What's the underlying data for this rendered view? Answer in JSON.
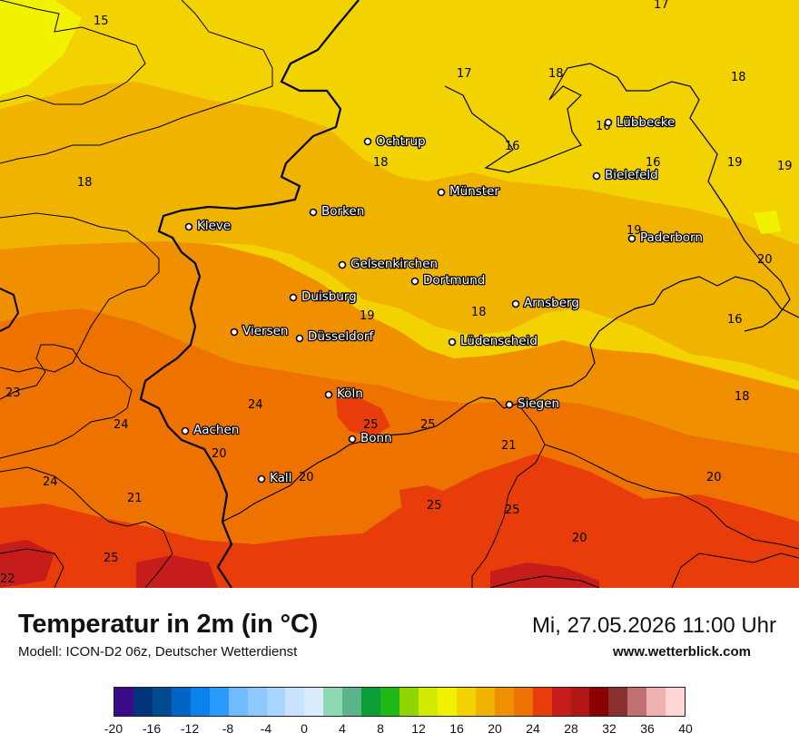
{
  "title": "Temperatur in 2m (in °C)",
  "model": "Modell: ICON-D2 06z, Deutscher Wetterdienst",
  "datetime": "Mi, 27.05.2026 11:00 Uhr",
  "website": "www.wetterblick.com",
  "legend": {
    "ticks": [
      "-20",
      "-16",
      "-12",
      "-8",
      "-4",
      "0",
      "4",
      "8",
      "12",
      "16",
      "20",
      "24",
      "28",
      "32",
      "36",
      "40"
    ],
    "colors": [
      "#3a0a88",
      "#00337a",
      "#004a8f",
      "#0064c4",
      "#0a82ee",
      "#2a9cff",
      "#70bbff",
      "#8ec8ff",
      "#a8d5ff",
      "#c8e2ff",
      "#dcecff",
      "#8fd8b4",
      "#5cb48a",
      "#0a9e38",
      "#20b818",
      "#90d400",
      "#d2ea00",
      "#f2f200",
      "#f2d200",
      "#f0b400",
      "#f09000",
      "#ee7200",
      "#e83c0a",
      "#c61c1c",
      "#b01616",
      "#8a0000",
      "#8a3030",
      "#c07070",
      "#f0b0b0",
      "#ffd6d6"
    ]
  },
  "cities": [
    {
      "name": "Ochtrup"
    },
    {
      "name": "Lübbecke"
    },
    {
      "name": "Bielefeld"
    },
    {
      "name": "Münster"
    },
    {
      "name": "Borken"
    },
    {
      "name": "Kleve"
    },
    {
      "name": "Paderborn"
    },
    {
      "name": "Gelsenkirchen"
    },
    {
      "name": "Dortmund"
    },
    {
      "name": "Duisburg"
    },
    {
      "name": "Arnsberg"
    },
    {
      "name": "Viersen"
    },
    {
      "name": "Düsseldorf"
    },
    {
      "name": "Lüdenscheid"
    },
    {
      "name": "Köln"
    },
    {
      "name": "Siegen"
    },
    {
      "name": "Aachen"
    },
    {
      "name": "Bonn"
    },
    {
      "name": "Kall"
    }
  ],
  "isotherm_labels": [
    "15",
    "17",
    "17",
    "18",
    "18",
    "16",
    "16",
    "16",
    "19",
    "19",
    "18",
    "18",
    "19",
    "17",
    "20",
    "18",
    "19",
    "16",
    "23",
    "24",
    "18",
    "24",
    "25",
    "25",
    "20",
    "21",
    "24",
    "20",
    "21",
    "20",
    "25",
    "25",
    "20",
    "25",
    "22"
  ]
}
